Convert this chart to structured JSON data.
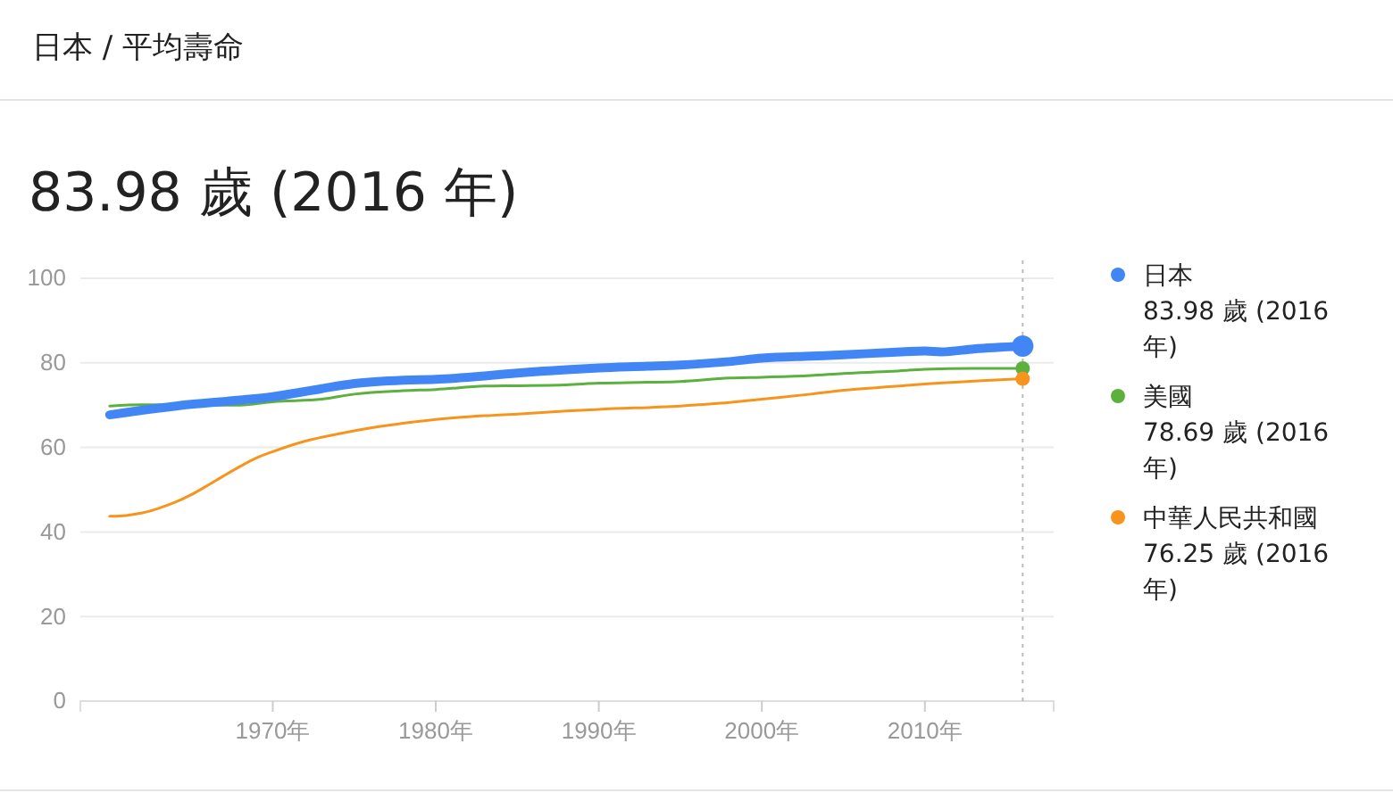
{
  "chart_data": {
    "type": "line",
    "title": "日本 / 平均壽命",
    "subtitle": "83.98 歲 (2016 年)",
    "xlim": [
      1958.2,
      2017.9
    ],
    "xticks": [
      {
        "value": 1970,
        "label": "1970年"
      },
      {
        "value": 1980,
        "label": "1980年"
      },
      {
        "value": 1990,
        "label": "1990年"
      },
      {
        "value": 2000,
        "label": "2000年"
      },
      {
        "value": 2010,
        "label": "2010年"
      }
    ],
    "ylim": [
      0,
      100
    ],
    "yticks": [
      0,
      20,
      40,
      60,
      80,
      100
    ],
    "grid": "y",
    "legend": "right",
    "line_style": "solid",
    "series": [
      {
        "name": "日本",
        "color": "#4285f4",
        "x": [
          1960,
          1965,
          1968,
          1970,
          1973,
          1975,
          1978,
          1980,
          1983,
          1985,
          1988,
          1990,
          1993,
          1995,
          1998,
          2000,
          2003,
          2005,
          2008,
          2010,
          2011,
          2013,
          2016
        ],
        "values": [
          67.7,
          70.2,
          71.2,
          72.0,
          73.9,
          75.1,
          75.9,
          76.1,
          76.9,
          77.6,
          78.4,
          78.8,
          79.2,
          79.5,
          80.3,
          81.1,
          81.6,
          81.9,
          82.5,
          82.8,
          82.6,
          83.3,
          83.98
        ]
      },
      {
        "name": "美國",
        "color": "#5bb03e",
        "x": [
          1960,
          1962,
          1965,
          1968,
          1970,
          1973,
          1975,
          1978,
          1980,
          1983,
          1985,
          1988,
          1990,
          1993,
          1995,
          1998,
          2000,
          2003,
          2005,
          2008,
          2010,
          2013,
          2016
        ],
        "values": [
          69.8,
          70.1,
          null,
          70.0,
          70.8,
          71.4,
          72.6,
          73.4,
          73.7,
          74.5,
          74.6,
          74.8,
          75.2,
          75.4,
          75.6,
          76.4,
          76.6,
          77.0,
          77.5,
          78.0,
          78.5,
          78.7,
          78.69
        ]
      },
      {
        "name": "中華人民共和國",
        "color": "#f7941d",
        "x": [
          1960,
          1961,
          1962,
          1963,
          1964,
          1965,
          1966,
          1967,
          1968,
          1969,
          1970,
          1972,
          1974,
          1976,
          1978,
          1980,
          1983,
          1985,
          1988,
          1990,
          1995,
          1998,
          2000,
          2003,
          2005,
          2008,
          2010,
          2013,
          2016
        ],
        "values": [
          43.7,
          43.9,
          44.5,
          45.6,
          47.0,
          48.8,
          51.0,
          53.3,
          55.5,
          57.5,
          59.0,
          61.5,
          63.2,
          64.6,
          65.7,
          66.6,
          67.5,
          67.9,
          68.6,
          69.0,
          69.8,
          70.6,
          71.4,
          72.6,
          73.5,
          74.4,
          75.0,
          75.7,
          76.25
        ]
      }
    ],
    "ref_lines": [
      {
        "axis": "x",
        "value": 2016,
        "line_style": "dotted",
        "color": "#bbbbbb"
      }
    ],
    "annotations": [
      "83.98 歲 (2016 年)",
      "78.69 歲 (2016 年)",
      "76.25 歲 (2016 年)"
    ]
  }
}
